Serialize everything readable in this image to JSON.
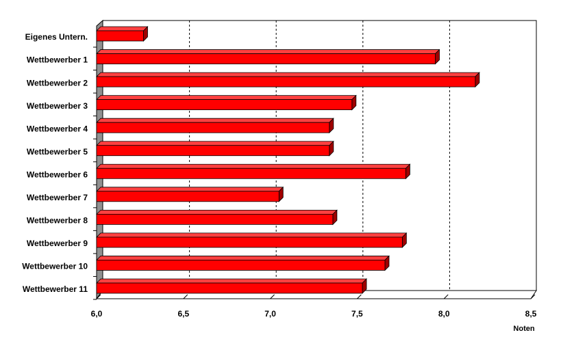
{
  "chart_data": {
    "type": "bar",
    "orientation": "horizontal",
    "x_label": "Noten",
    "categories": [
      "Eigenes Untern.",
      "Wettbewerber 1",
      "Wettbewerber 2",
      "Wettbewerber 3",
      "Wettbewerber 4",
      "Wettbewerber 5",
      "Wettbewerber 6",
      "Wettbewerber 7",
      "Wettbewerber 8",
      "Wettbewerber 9",
      "Wettbewerber 10",
      "Wettbewerber 11"
    ],
    "values": [
      6.27,
      7.95,
      8.18,
      7.47,
      7.34,
      7.34,
      7.78,
      7.05,
      7.36,
      7.76,
      7.66,
      7.53
    ],
    "color": "#ff0000",
    "xlim": [
      6.0,
      8.5
    ],
    "xticks": [
      {
        "value": 6.0,
        "label": "6,0"
      },
      {
        "value": 6.5,
        "label": "6,5"
      },
      {
        "value": 7.0,
        "label": "7,0"
      },
      {
        "value": 7.5,
        "label": "7,5"
      },
      {
        "value": 8.0,
        "label": "8,0"
      },
      {
        "value": 8.5,
        "label": "8,5"
      }
    ],
    "grid": true
  }
}
